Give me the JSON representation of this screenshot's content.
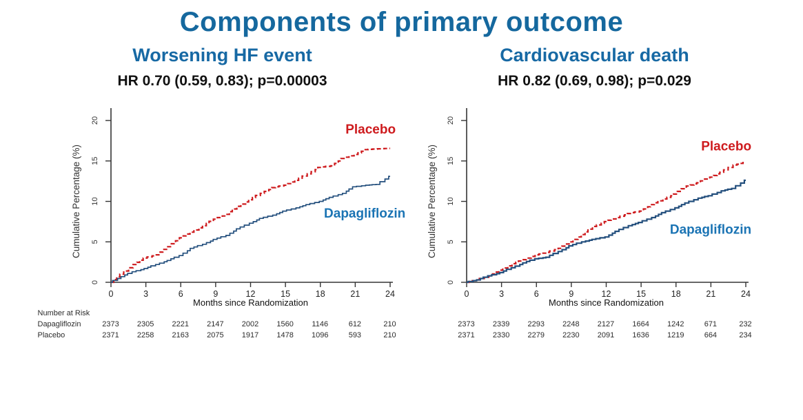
{
  "title": "Components of primary outcome",
  "colors": {
    "title_blue": "#15689E",
    "subtitle_blue": "#1769A4",
    "series_label_blue": "#1B74B4",
    "red": "#CE1B1E",
    "curve_blue": "#234F7D",
    "axis": "#333333",
    "risk_text": "#2b2b2b"
  },
  "panels": [
    {
      "subtitle": "Worsening HF event",
      "hr_text": "HR 0.70 (0.59, 0.83); p=0.00003"
    },
    {
      "subtitle": "Cardiovascular death",
      "hr_text": "HR 0.82 (0.69, 0.98); p=0.029"
    }
  ],
  "chart_data": [
    {
      "type": "line",
      "title": "Worsening HF event",
      "xlabel": "Months since Randomization",
      "ylabel": "Cumulative Percentage (%)",
      "xlim": [
        0,
        24
      ],
      "ylim": [
        0,
        20
      ],
      "x_ticks": [
        0,
        3,
        6,
        9,
        12,
        15,
        18,
        21,
        24
      ],
      "y_ticks": [
        0,
        5,
        10,
        15,
        20
      ],
      "grid": false,
      "legend_position": "in-plot",
      "x_months": [
        0,
        1,
        2,
        3,
        4,
        5,
        6,
        7,
        8,
        9,
        10,
        11,
        12,
        13,
        14,
        15,
        16,
        17,
        18,
        19,
        20,
        21,
        22,
        23,
        24
      ],
      "series": [
        {
          "name": "Placebo",
          "style": "dashed",
          "color_key": "red",
          "stroke_width": 2.2,
          "values": [
            0,
            1.0,
            2.2,
            3.0,
            3.4,
            4.4,
            5.5,
            6.2,
            7.0,
            7.8,
            8.4,
            9.4,
            10.2,
            11.0,
            11.7,
            12.0,
            12.6,
            13.4,
            14.2,
            14.4,
            15.3,
            15.8,
            16.4,
            16.5,
            16.55
          ],
          "label_pos": {
            "x_frac": 1.02,
            "y_value": 18.4
          }
        },
        {
          "name": "Dapagliflozin",
          "style": "solid",
          "color_key": "curve_blue",
          "stroke_width": 1.7,
          "values": [
            0,
            0.7,
            1.3,
            1.7,
            2.2,
            2.7,
            3.3,
            4.2,
            4.7,
            5.3,
            5.8,
            6.6,
            7.3,
            7.9,
            8.3,
            8.8,
            9.2,
            9.6,
            10.0,
            10.5,
            11.0,
            11.8,
            12.0,
            12.1,
            13.1
          ],
          "label_pos": {
            "x_frac": 1.055,
            "y_value": 8.0
          }
        }
      ],
      "number_at_risk": {
        "header": "Number at Risk",
        "show_labels": true,
        "months": [
          0,
          3,
          6,
          9,
          12,
          15,
          18,
          21,
          24
        ],
        "rows": [
          {
            "label": "Dapagliflozin",
            "counts": [
              2373,
              2305,
              2221,
              2147,
              2002,
              1560,
              1146,
              612,
              210
            ]
          },
          {
            "label": "Placebo",
            "counts": [
              2371,
              2258,
              2163,
              2075,
              1917,
              1478,
              1096,
              593,
              210
            ]
          }
        ]
      }
    },
    {
      "type": "line",
      "title": "Cardiovascular death",
      "xlabel": "Months since Randomization",
      "ylabel": "Cumulative Percentage (%)",
      "xlim": [
        0,
        24
      ],
      "ylim": [
        0,
        20
      ],
      "x_ticks": [
        0,
        3,
        6,
        9,
        12,
        15,
        18,
        21,
        24
      ],
      "y_ticks": [
        0,
        5,
        10,
        15,
        20
      ],
      "grid": false,
      "legend_position": "in-plot",
      "x_months": [
        0,
        1,
        2,
        3,
        4,
        5,
        6,
        7,
        8,
        9,
        10,
        11,
        12,
        13,
        14,
        15,
        16,
        17,
        18,
        19,
        20,
        21,
        22,
        23,
        24
      ],
      "series": [
        {
          "name": "Placebo",
          "style": "dashed",
          "color_key": "red",
          "stroke_width": 2.2,
          "values": [
            0,
            0.3,
            0.8,
            1.5,
            2.3,
            2.8,
            3.4,
            3.7,
            4.2,
            5.0,
            5.9,
            6.9,
            7.5,
            8.0,
            8.5,
            8.8,
            9.6,
            10.3,
            10.9,
            11.9,
            12.3,
            13.0,
            13.6,
            14.5,
            14.8
          ],
          "label_pos": {
            "x_frac": 1.02,
            "y_value": 16.3
          }
        },
        {
          "name": "Dapagliflozin",
          "style": "solid",
          "color_key": "curve_blue",
          "stroke_width": 2.2,
          "values": [
            0,
            0.3,
            0.8,
            1.2,
            1.8,
            2.4,
            2.9,
            3.1,
            3.8,
            4.5,
            5.0,
            5.3,
            5.6,
            6.3,
            7.0,
            7.4,
            8.0,
            8.6,
            9.2,
            9.8,
            10.4,
            10.7,
            11.3,
            11.6,
            12.6
          ],
          "label_pos": {
            "x_frac": 1.02,
            "y_value": 6.0
          }
        }
      ],
      "number_at_risk": {
        "header": "",
        "show_labels": false,
        "months": [
          0,
          3,
          6,
          9,
          12,
          15,
          18,
          21,
          24
        ],
        "rows": [
          {
            "label": "",
            "counts": [
              2373,
              2339,
              2293,
              2248,
              2127,
              1664,
              1242,
              671,
              232
            ]
          },
          {
            "label": "",
            "counts": [
              2371,
              2330,
              2279,
              2230,
              2091,
              1636,
              1219,
              664,
              234
            ]
          }
        ]
      }
    }
  ]
}
